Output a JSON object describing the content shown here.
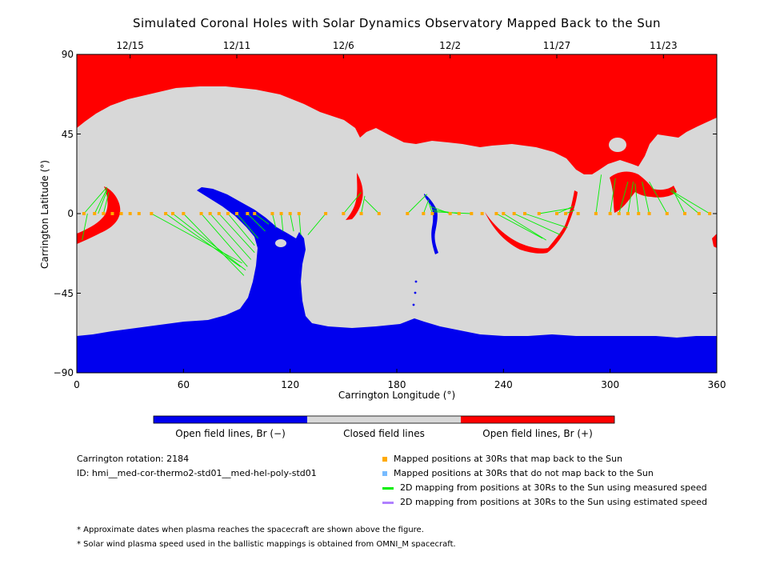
{
  "chart_data": {
    "type": "map",
    "title": "Simulated Coronal Holes with Solar Dynamics Observatory Mapped Back to the Sun",
    "xlabel": "Carrington Longitude (°)",
    "ylabel": "Carrington Latitude (°)",
    "xlim": [
      0,
      360
    ],
    "ylim": [
      -90,
      90
    ],
    "x_ticks": [
      0,
      60,
      120,
      180,
      240,
      300,
      360
    ],
    "y_ticks": [
      -90,
      -45,
      0,
      45,
      90
    ],
    "top_axis_dates": [
      {
        "lon": 30,
        "label": "12/15"
      },
      {
        "lon": 90,
        "label": "12/11"
      },
      {
        "lon": 150,
        "label": "12/6"
      },
      {
        "lon": 210,
        "label": "12/2"
      },
      {
        "lon": 270,
        "label": "11/27"
      },
      {
        "lon": 330,
        "label": "11/23"
      }
    ],
    "colorbar": [
      {
        "label": "Open field lines, Br (−)",
        "color": "#0000ee"
      },
      {
        "label": "Closed field lines",
        "color": "#d8d8d8"
      },
      {
        "label": "Open field lines, Br (+)",
        "color": "#ff0000"
      }
    ],
    "colors": {
      "negative": "#0000ee",
      "closed": "#d8d8d8",
      "positive": "#ff0000",
      "mapped": "#ffaa00",
      "unmapped": "#77bbff",
      "measured": "#00ee00",
      "estimated": "#b080ff"
    },
    "mapped_positions_lon": [
      4,
      10,
      15,
      20,
      25,
      30,
      35,
      42,
      50,
      54,
      60,
      70,
      75,
      80,
      85,
      90,
      96,
      100,
      110,
      115,
      120,
      125,
      140,
      150,
      160,
      170,
      186,
      195,
      200,
      210,
      215,
      222,
      228,
      236,
      240,
      246,
      252,
      260,
      270,
      275,
      282,
      292,
      300,
      305,
      310,
      316,
      322,
      332,
      342,
      350,
      356
    ],
    "mapping_lines": [
      {
        "from": [
          4,
          0
        ],
        "to": [
          17,
          15
        ]
      },
      {
        "from": [
          6,
          0
        ],
        "to": [
          3,
          -15
        ]
      },
      {
        "from": [
          10,
          0
        ],
        "to": [
          17,
          14
        ]
      },
      {
        "from": [
          12,
          0
        ],
        "to": [
          17,
          13
        ]
      },
      {
        "from": [
          15,
          0
        ],
        "to": [
          18,
          12
        ]
      },
      {
        "from": [
          42,
          0
        ],
        "to": [
          93,
          -28
        ]
      },
      {
        "from": [
          50,
          0
        ],
        "to": [
          92,
          -30
        ]
      },
      {
        "from": [
          54,
          0
        ],
        "to": [
          95,
          -32
        ]
      },
      {
        "from": [
          60,
          0
        ],
        "to": [
          94,
          -35
        ]
      },
      {
        "from": [
          70,
          0
        ],
        "to": [
          96,
          -30
        ]
      },
      {
        "from": [
          75,
          0
        ],
        "to": [
          98,
          -26
        ]
      },
      {
        "from": [
          80,
          0
        ],
        "to": [
          100,
          -22
        ]
      },
      {
        "from": [
          85,
          0
        ],
        "to": [
          100,
          -18
        ]
      },
      {
        "from": [
          90,
          0
        ],
        "to": [
          102,
          -14
        ]
      },
      {
        "from": [
          96,
          0
        ],
        "to": [
          106,
          -10
        ]
      },
      {
        "from": [
          100,
          0
        ],
        "to": [
          108,
          -6
        ]
      },
      {
        "from": [
          110,
          0
        ],
        "to": [
          112,
          -8
        ]
      },
      {
        "from": [
          115,
          0
        ],
        "to": [
          116,
          -10
        ]
      },
      {
        "from": [
          120,
          0
        ],
        "to": [
          122,
          -10
        ]
      },
      {
        "from": [
          125,
          0
        ],
        "to": [
          126,
          -12
        ]
      },
      {
        "from": [
          140,
          0
        ],
        "to": [
          130,
          -12
        ]
      },
      {
        "from": [
          150,
          0
        ],
        "to": [
          160,
          12
        ]
      },
      {
        "from": [
          160,
          0
        ],
        "to": [
          162,
          10
        ]
      },
      {
        "from": [
          170,
          0
        ],
        "to": [
          162,
          8
        ]
      },
      {
        "from": [
          186,
          0
        ],
        "to": [
          197,
          11
        ]
      },
      {
        "from": [
          195,
          0
        ],
        "to": [
          198,
          8
        ]
      },
      {
        "from": [
          200,
          0
        ],
        "to": [
          198,
          6
        ]
      },
      {
        "from": [
          210,
          0
        ],
        "to": [
          199,
          4
        ]
      },
      {
        "from": [
          215,
          0
        ],
        "to": [
          200,
          2
        ]
      },
      {
        "from": [
          222,
          0
        ],
        "to": [
          201,
          1
        ]
      },
      {
        "from": [
          236,
          0
        ],
        "to": [
          262,
          -14
        ]
      },
      {
        "from": [
          240,
          0
        ],
        "to": [
          264,
          -15
        ]
      },
      {
        "from": [
          246,
          0
        ],
        "to": [
          272,
          -12
        ]
      },
      {
        "from": [
          252,
          0
        ],
        "to": [
          276,
          -8
        ]
      },
      {
        "from": [
          260,
          0
        ],
        "to": [
          278,
          3
        ]
      },
      {
        "from": [
          270,
          0
        ],
        "to": [
          279,
          4
        ]
      },
      {
        "from": [
          275,
          0
        ],
        "to": [
          280,
          2
        ]
      },
      {
        "from": [
          292,
          0
        ],
        "to": [
          295,
          22
        ]
      },
      {
        "from": [
          300,
          0
        ],
        "to": [
          303,
          20
        ]
      },
      {
        "from": [
          305,
          0
        ],
        "to": [
          310,
          18
        ]
      },
      {
        "from": [
          310,
          0
        ],
        "to": [
          313,
          18
        ]
      },
      {
        "from": [
          316,
          0
        ],
        "to": [
          314,
          17
        ]
      },
      {
        "from": [
          322,
          0
        ],
        "to": [
          318,
          18
        ]
      },
      {
        "from": [
          332,
          0
        ],
        "to": [
          322,
          18
        ]
      },
      {
        "from": [
          342,
          0
        ],
        "to": [
          335,
          14
        ]
      },
      {
        "from": [
          350,
          0
        ],
        "to": [
          334,
          13
        ]
      },
      {
        "from": [
          356,
          0
        ],
        "to": [
          336,
          12
        ]
      }
    ]
  },
  "colorbar_labels": {
    "negative": "Open field lines, Br (−)",
    "closed": "Closed field lines",
    "positive": "Open field lines, Br (+)"
  },
  "info": {
    "rotation": "Carrington rotation: 2184",
    "id": "ID: hmi__med-cor-thermo2-std01__med-hel-poly-std01"
  },
  "legend": [
    {
      "label": "Mapped positions at 30Rs that map back to the Sun",
      "marker": "square",
      "color": "#ffaa00"
    },
    {
      "label": "Mapped positions at 30Rs that do not map back to the Sun",
      "marker": "square",
      "color": "#77bbff"
    },
    {
      "label": "2D mapping from positions at 30Rs to the Sun using measured speed",
      "marker": "line",
      "color": "#00ee00"
    },
    {
      "label": "2D mapping from positions at 30Rs to the Sun using estimated speed",
      "marker": "line",
      "color": "#b080ff"
    }
  ],
  "notes": [
    "* Approximate dates when plasma reaches the spacecraft are shown above the figure.",
    "* Solar wind plasma speed used in the ballistic mappings is obtained from OMNI_M spacecraft."
  ]
}
